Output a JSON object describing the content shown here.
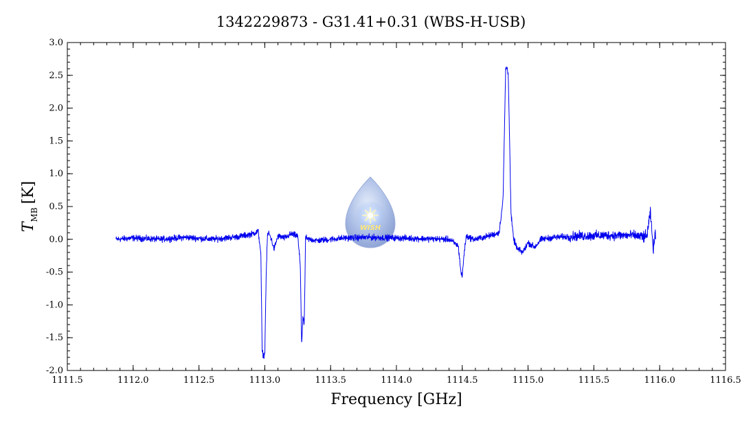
{
  "chart_data": {
    "type": "line",
    "title": "1342229873 - G31.41+0.31 (WBS-H-USB)",
    "xlabel": "Frequency [GHz]",
    "ylabel": {
      "symbol": "T",
      "subscript": "MB",
      "unit": "[K]"
    },
    "xlim": [
      1111.5,
      1116.5
    ],
    "ylim": [
      -2.0,
      3.0
    ],
    "x_ticks": [
      1111.5,
      1112.0,
      1112.5,
      1113.0,
      1113.5,
      1114.0,
      1114.5,
      1115.0,
      1115.5,
      1116.0,
      1116.5
    ],
    "x_tick_labels": [
      "1111.5",
      "1112.0",
      "1112.5",
      "1113.0",
      "1113.5",
      "1114.0",
      "1114.5",
      "1115.0",
      "1115.5",
      "1116.0",
      "1116.5"
    ],
    "y_ticks": [
      -2.0,
      -1.5,
      -1.0,
      -0.5,
      0.0,
      0.5,
      1.0,
      1.5,
      2.0,
      2.5,
      3.0
    ],
    "y_tick_labels": [
      "-2.0",
      "-1.5",
      "-1.0",
      "-0.5",
      "0.0",
      "0.5",
      "1.0",
      "1.5",
      "2.0",
      "2.5",
      "3.0"
    ],
    "grid": false,
    "series": [
      {
        "color": "#0000ee",
        "x": [
          1111.87,
          1112.0,
          1112.2,
          1112.4,
          1112.6,
          1112.8,
          1112.9,
          1112.95,
          1112.97,
          1112.98,
          1112.99,
          1113.0,
          1113.01,
          1113.02,
          1113.03,
          1113.05,
          1113.07,
          1113.1,
          1113.15,
          1113.2,
          1113.25,
          1113.27,
          1113.28,
          1113.29,
          1113.3,
          1113.31,
          1113.32,
          1113.34,
          1113.4,
          1113.6,
          1113.8,
          1114.0,
          1114.2,
          1114.4,
          1114.47,
          1114.49,
          1114.5,
          1114.51,
          1114.53,
          1114.56,
          1114.6,
          1114.7,
          1114.78,
          1114.81,
          1114.83,
          1114.84,
          1114.85,
          1114.86,
          1114.87,
          1114.89,
          1114.92,
          1114.96,
          1115.0,
          1115.05,
          1115.1,
          1115.2,
          1115.4,
          1115.6,
          1115.8,
          1115.9,
          1115.93,
          1115.95,
          1115.97
        ],
        "y": [
          0.0,
          0.02,
          0.0,
          0.03,
          0.0,
          0.04,
          0.08,
          0.12,
          -0.2,
          -1.7,
          -1.78,
          -1.75,
          -0.6,
          0.05,
          0.1,
          0.0,
          -0.15,
          0.05,
          0.02,
          0.08,
          0.05,
          -0.4,
          -1.6,
          -1.2,
          -1.3,
          0.05,
          0.0,
          0.0,
          -0.02,
          0.02,
          0.03,
          0.02,
          0.01,
          0.0,
          -0.1,
          -0.5,
          -0.58,
          -0.3,
          0.05,
          0.02,
          0.0,
          0.05,
          0.1,
          0.6,
          2.6,
          2.62,
          2.5,
          1.5,
          0.4,
          0.0,
          -0.15,
          -0.2,
          -0.05,
          -0.12,
          0.0,
          0.03,
          0.05,
          0.06,
          0.06,
          0.03,
          0.4,
          -0.15,
          0.1
        ]
      }
    ]
  },
  "logo": {
    "text": "WISH"
  }
}
